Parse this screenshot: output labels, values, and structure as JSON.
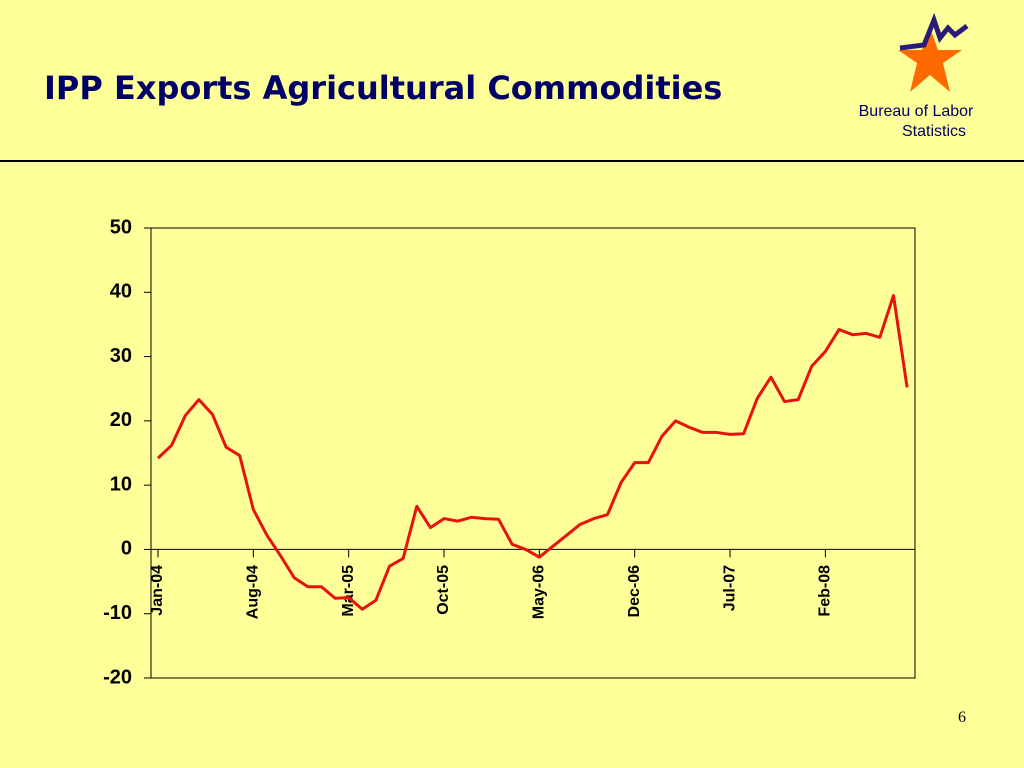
{
  "header": {
    "title": "IPP Exports Agricultural Commodities",
    "logo_text": "Bureau of Labor Statistics"
  },
  "page_number": "6",
  "chart_data": {
    "type": "line",
    "x": [
      "Jan-04",
      null,
      null,
      null,
      null,
      null,
      null,
      "Aug-04",
      null,
      null,
      null,
      null,
      null,
      null,
      "Mar-05",
      null,
      null,
      null,
      null,
      null,
      null,
      "Oct-05",
      null,
      null,
      null,
      null,
      null,
      null,
      "May-06",
      null,
      null,
      null,
      null,
      null,
      null,
      "Dec-06",
      null,
      null,
      null,
      null,
      null,
      null,
      "Jul-07",
      null,
      null,
      null,
      null,
      null,
      null,
      "Feb-08",
      null,
      null,
      null,
      null,
      null,
      null
    ],
    "series": [
      {
        "name": "IPP Exports Agricultural Commodities",
        "color": "#e8120c",
        "values": [
          14.2,
          16.2,
          20.8,
          23.3,
          21,
          15.9,
          14.6,
          6.2,
          2.2,
          -1,
          -4.4,
          -5.8,
          -5.8,
          -7.6,
          -7.5,
          -9.3,
          -7.9,
          -2.6,
          -1.4,
          6.7,
          3.4,
          4.8,
          4.4,
          5,
          4.8,
          4.7,
          0.8,
          0,
          -1.2,
          0.5,
          2.2,
          3.9,
          4.8,
          5.4,
          10.4,
          13.5,
          13.5,
          17.6,
          20,
          19,
          18.2,
          18.2,
          17.9,
          18,
          23.5,
          26.8,
          23,
          23.3,
          28.5,
          30.8,
          34.2,
          33.4,
          33.6,
          33,
          39.5,
          25.2
        ]
      }
    ],
    "ylim": [
      -20,
      50
    ],
    "yticks": [
      -20,
      -10,
      0,
      10,
      20,
      30,
      40,
      50
    ],
    "legend": false
  }
}
